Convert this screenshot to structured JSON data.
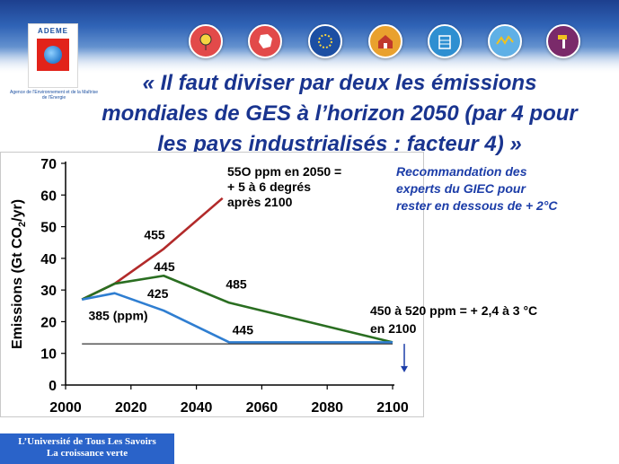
{
  "header": {
    "logo_text": "ADEME",
    "agency_name": "Agence de l'Environnement et de la Maîtrise de l'Énergie",
    "icons": [
      "balloon-icon",
      "france-map-icon",
      "eu-stars-icon",
      "house-icon",
      "building-icon",
      "wave-icon",
      "hammer-icon"
    ]
  },
  "slide": {
    "title": "« Il faut diviser par deux les émissions mondiales de GES à l’horizon 2050 (par 4 pour les pays industrialisés : facteur 4) »",
    "note_550": "55O ppm en 2050 =\n + 5 à 6 degrés\naprès 2100",
    "note_giec": "Recommandation des\n experts du GIEC pour\n rester en dessous de + 2°C",
    "note_450": "450 à 520 ppm = + 2,4 à 3 °C\nen 2100"
  },
  "footer": {
    "line1": "L’Université de Tous Les Savoirs",
    "line2": "La croissance verte"
  },
  "colors": {
    "red_series": "#b22a2a",
    "green_series": "#2a6e21",
    "blue_series": "#2f7ed1",
    "title": "#19348f",
    "giec_text": "#1c3da8",
    "footer_bg": "#2a63c9"
  },
  "chart_data": {
    "type": "line",
    "xlabel": "",
    "ylabel_prefix": "Emissions (Gt CO",
    "ylabel_sub": "2",
    "ylabel_suffix": "/yr)",
    "xlim": [
      2000,
      2100
    ],
    "ylim": [
      0,
      70
    ],
    "xticks": [
      2000,
      2020,
      2040,
      2060,
      2080,
      2100
    ],
    "yticks": [
      0,
      10,
      20,
      30,
      40,
      50,
      60,
      70
    ],
    "grid": false,
    "series": [
      {
        "color": "#b22a2a",
        "x": [
          2005,
          2015,
          2030,
          2048
        ],
        "y": [
          27,
          32,
          43,
          59
        ]
      },
      {
        "color": "#2a6e21",
        "x": [
          2005,
          2015,
          2030,
          2050,
          2100
        ],
        "y": [
          27,
          32,
          34.5,
          26,
          13.5
        ]
      },
      {
        "color": "#2f7ed1",
        "x": [
          2005,
          2015,
          2030,
          2050,
          2100
        ],
        "y": [
          27,
          29,
          23.5,
          13.5,
          13.5
        ]
      }
    ],
    "reference_line": {
      "y": 13,
      "x": [
        2005,
        2100
      ]
    },
    "arrow": {
      "x": 2100,
      "y_from": 13,
      "y_to": 6
    },
    "annotations": [
      {
        "text": "385 (ppm)",
        "x": 2007,
        "y": 20.5
      },
      {
        "text": "455",
        "x": 2024,
        "y": 46
      },
      {
        "text": "445",
        "x": 2027,
        "y": 36
      },
      {
        "text": "425",
        "x": 2025,
        "y": 27.5
      },
      {
        "text": "485",
        "x": 2049,
        "y": 30.5
      },
      {
        "text": "445",
        "x": 2051,
        "y": 16
      }
    ]
  }
}
